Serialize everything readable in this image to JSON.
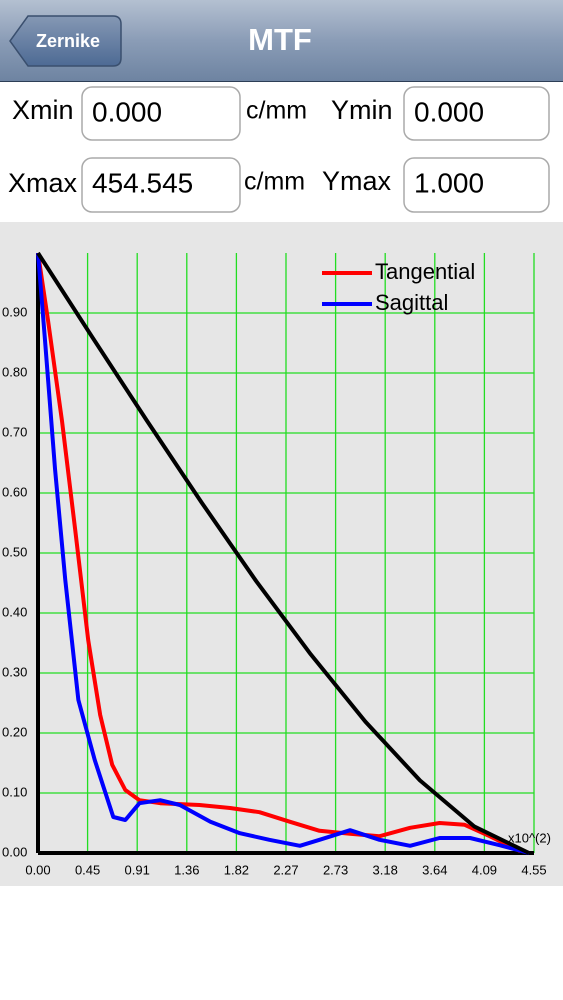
{
  "nav": {
    "back": "Zernike",
    "title": "MTF"
  },
  "form": {
    "xmin": {
      "label": "Xmin",
      "value": "0.000",
      "unit": "c/mm"
    },
    "ymin": {
      "label": "Ymin",
      "value": "0.000"
    },
    "xmax": {
      "label": "Xmax",
      "value": "454.545",
      "unit": "c/mm"
    },
    "ymax": {
      "label": "Ymax",
      "value": "1.000"
    }
  },
  "chart_data": {
    "type": "line",
    "x_unit_label": "x10^(2)",
    "xlim": [
      0,
      4.5455
    ],
    "ylim": [
      0,
      1
    ],
    "xticks": [
      {
        "value": 0,
        "label": "0.00"
      },
      {
        "value": 0.4545,
        "label": "0.45"
      },
      {
        "value": 0.9091,
        "label": "0.91"
      },
      {
        "value": 1.3636,
        "label": "1.36"
      },
      {
        "value": 1.8182,
        "label": "1.82"
      },
      {
        "value": 2.2727,
        "label": "2.27"
      },
      {
        "value": 2.7273,
        "label": "2.73"
      },
      {
        "value": 3.1818,
        "label": "3.18"
      },
      {
        "value": 3.6364,
        "label": "3.64"
      },
      {
        "value": 4.0909,
        "label": "4.09"
      },
      {
        "value": 4.5455,
        "label": "4.55"
      }
    ],
    "yticks": [
      {
        "value": 0,
        "label": "0.00"
      },
      {
        "value": 0.1,
        "label": "0.10"
      },
      {
        "value": 0.2,
        "label": "0.20"
      },
      {
        "value": 0.3,
        "label": "0.30"
      },
      {
        "value": 0.4,
        "label": "0.40"
      },
      {
        "value": 0.5,
        "label": "0.50"
      },
      {
        "value": 0.6,
        "label": "0.60"
      },
      {
        "value": 0.7,
        "label": "0.70"
      },
      {
        "value": 0.8,
        "label": "0.80"
      },
      {
        "value": 0.9,
        "label": "0.90"
      }
    ],
    "grid": true,
    "grid_color": "#22dd22",
    "legend": "top-right",
    "series": [
      {
        "name": "Tangential",
        "color": "#ff0000",
        "x": [
          0,
          0.09,
          0.22,
          0.34,
          0.46,
          0.57,
          0.68,
          0.8,
          0.93,
          1.12,
          1.48,
          1.76,
          2.03,
          2.31,
          2.58,
          2.86,
          3.13,
          3.41,
          3.68,
          3.91,
          4.14,
          4.42
        ],
        "values": [
          1.0,
          0.89,
          0.72,
          0.54,
          0.355,
          0.23,
          0.147,
          0.105,
          0.088,
          0.083,
          0.08,
          0.075,
          0.068,
          0.052,
          0.037,
          0.032,
          0.028,
          0.042,
          0.05,
          0.047,
          0.028,
          0.003
        ]
      },
      {
        "name": "Sagittal",
        "color": "#0000ff",
        "x": [
          0,
          0.064,
          0.156,
          0.25,
          0.37,
          0.52,
          0.69,
          0.8,
          0.93,
          1.12,
          1.3,
          1.58,
          1.85,
          2.12,
          2.4,
          2.58,
          2.86,
          3.13,
          3.41,
          3.68,
          3.96,
          4.23,
          4.5
        ],
        "values": [
          1.0,
          0.855,
          0.64,
          0.455,
          0.255,
          0.155,
          0.06,
          0.055,
          0.083,
          0.088,
          0.08,
          0.052,
          0.033,
          0.022,
          0.012,
          0.022,
          0.038,
          0.022,
          0.012,
          0.025,
          0.025,
          0.013,
          0
        ]
      },
      {
        "color": "#000000",
        "x": [
          0,
          0.5,
          1.0,
          1.5,
          2.0,
          2.5,
          3.0,
          3.5,
          4.0,
          4.5
        ],
        "values": [
          1.0,
          0.859,
          0.72,
          0.584,
          0.453,
          0.331,
          0.219,
          0.121,
          0.044,
          0
        ]
      }
    ]
  }
}
